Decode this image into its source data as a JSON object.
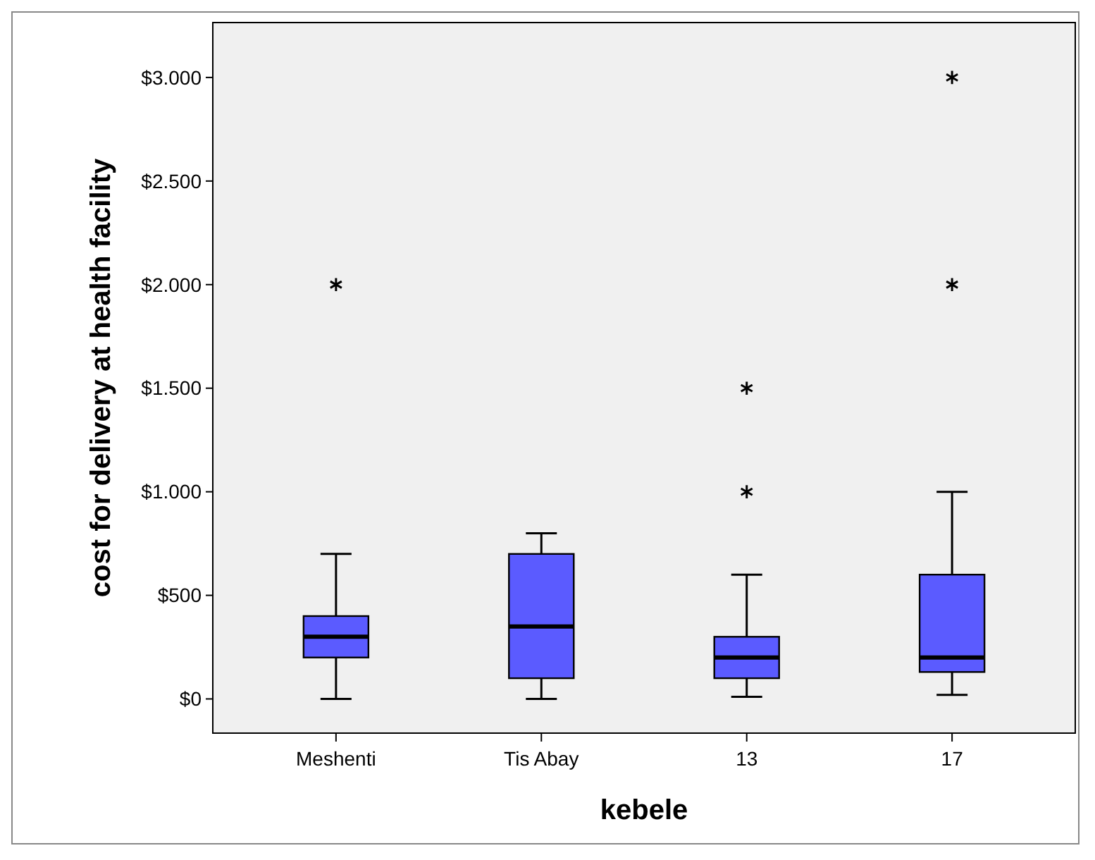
{
  "chart_data": {
    "type": "box",
    "xlabel": "kebele",
    "ylabel": "cost for delivery at health facility",
    "categories": [
      "Meshenti",
      "Tis Abay",
      "13",
      "17"
    ],
    "color": "#5b5bff",
    "ylim": [
      -165,
      3265
    ],
    "yticks": [
      {
        "value": 0,
        "label": "$0"
      },
      {
        "value": 500,
        "label": "$500"
      },
      {
        "value": 1000,
        "label": "$1.000"
      },
      {
        "value": 1500,
        "label": "$1.500"
      },
      {
        "value": 2000,
        "label": "$2.000"
      },
      {
        "value": 2500,
        "label": "$2.500"
      },
      {
        "value": 3000,
        "label": "$3.000"
      }
    ],
    "grid": false,
    "marker": "star",
    "boxes": [
      {
        "low": 0,
        "q1": 200,
        "median": 300,
        "q3": 400,
        "high": 700,
        "outliers": [
          2000
        ]
      },
      {
        "low": 0,
        "q1": 100,
        "median": 350,
        "q3": 700,
        "high": 800
      },
      {
        "low": 10,
        "q1": 100,
        "median": 200,
        "q3": 300,
        "high": 600,
        "outliers": [
          1000,
          1500
        ]
      },
      {
        "low": 20,
        "q1": 130,
        "median": 200,
        "q3": 600,
        "high": 1000,
        "outliers": [
          2000,
          3000
        ]
      }
    ]
  }
}
